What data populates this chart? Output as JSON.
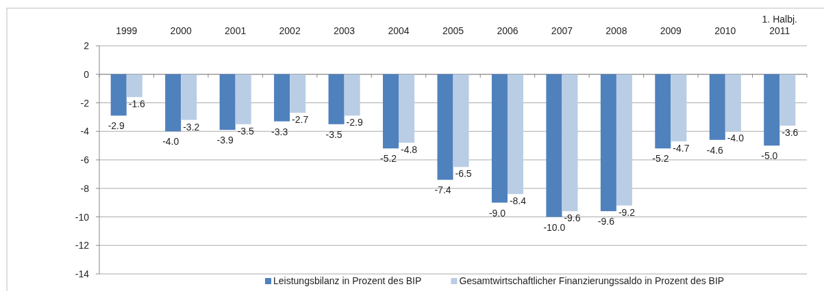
{
  "chart_data": {
    "type": "bar",
    "categories": [
      "1999",
      "2000",
      "2001",
      "2002",
      "2003",
      "2004",
      "2005",
      "2006",
      "2007",
      "2008",
      "2009",
      "2010",
      "1. Halbj.\n2011"
    ],
    "series": [
      {
        "name": "Leistungsbilanz in Prozent des BIP",
        "color": "#4f81bd",
        "values": [
          -2.9,
          -4.0,
          -3.9,
          -3.3,
          -3.5,
          -5.2,
          -7.4,
          -9.0,
          -10.0,
          -9.6,
          -5.2,
          -4.6,
          -5.0
        ],
        "value_labels": [
          "-2.9",
          "-4.0",
          "-3.9",
          "-3.3",
          "-3.5",
          "-5.2",
          "-7.4",
          "-9.0",
          "-10.0",
          "-9.6",
          "-5.2",
          "-4.6",
          "-5.0"
        ]
      },
      {
        "name": "Gesamtwirtschaftlicher Finanzierungssaldo in Prozent des BIP",
        "color": "#b9cde5",
        "values": [
          -1.6,
          -3.2,
          -3.5,
          -2.7,
          -2.9,
          -4.8,
          -6.5,
          -8.4,
          -9.6,
          -9.2,
          -4.7,
          -4.0,
          -3.6
        ],
        "value_labels": [
          "-1.6",
          "-3.2",
          "-3.5",
          "-2.7",
          "-2.9",
          "-4.8",
          "-6.5",
          "-8.4",
          "-9.6",
          "-9.2",
          "-4.7",
          "-4.0",
          "-3.6"
        ]
      }
    ],
    "ylim": [
      -14,
      2
    ],
    "yticks": [
      2,
      0,
      -2,
      -4,
      -6,
      -8,
      -10,
      -12,
      -14
    ],
    "grid": "y",
    "legend": "bottom"
  }
}
